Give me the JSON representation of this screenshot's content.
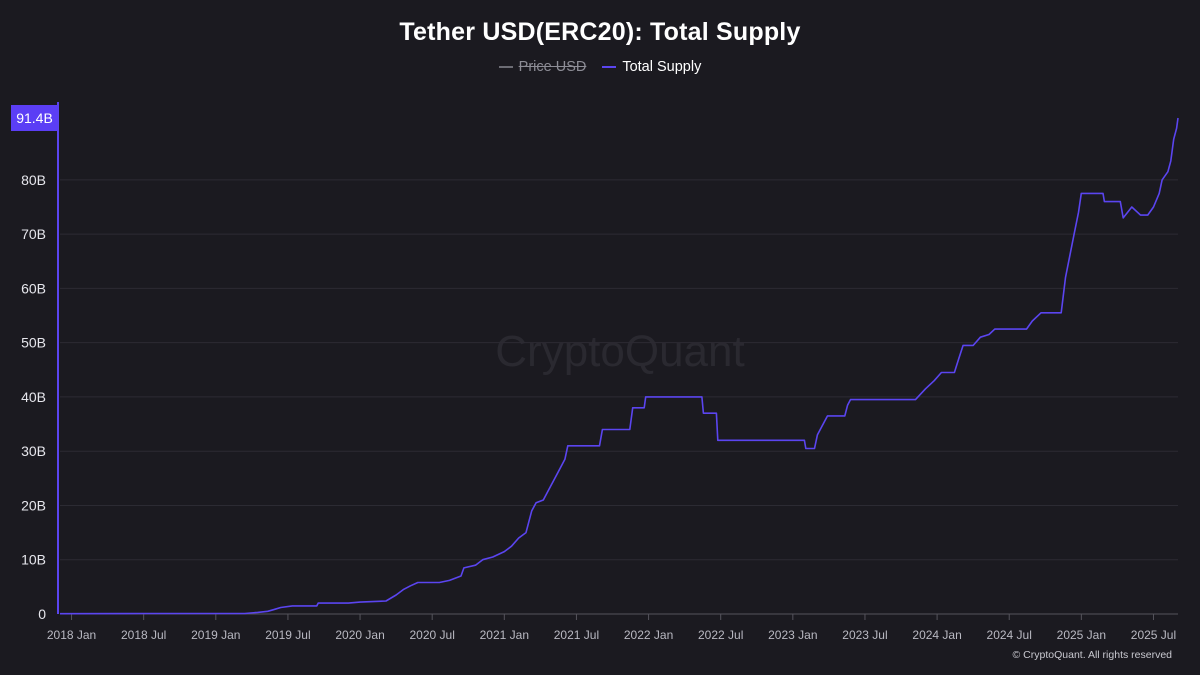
{
  "chart_data": {
    "type": "line",
    "title": "Tether USD(ERC20): Total Supply",
    "legend": [
      {
        "name": "Price USD",
        "visible": false,
        "color": "#6c6c74"
      },
      {
        "name": "Total Supply",
        "visible": true,
        "color": "#5b45f0"
      }
    ],
    "y_ticks": [
      {
        "value": 0,
        "label": "0"
      },
      {
        "value": 10,
        "label": "10B"
      },
      {
        "value": 20,
        "label": "20B"
      },
      {
        "value": 30,
        "label": "30B"
      },
      {
        "value": 40,
        "label": "40B"
      },
      {
        "value": 50,
        "label": "50B"
      },
      {
        "value": 60,
        "label": "60B"
      },
      {
        "value": 70,
        "label": "70B"
      },
      {
        "value": 80,
        "label": "80B"
      }
    ],
    "x_ticks": [
      {
        "t": 2018.0,
        "label": "2018 Jan"
      },
      {
        "t": 2018.5,
        "label": "2018 Jul"
      },
      {
        "t": 2019.0,
        "label": "2019 Jan"
      },
      {
        "t": 2019.5,
        "label": "2019 Jul"
      },
      {
        "t": 2020.0,
        "label": "2020 Jan"
      },
      {
        "t": 2020.5,
        "label": "2020 Jul"
      },
      {
        "t": 2021.0,
        "label": "2021 Jan"
      },
      {
        "t": 2021.5,
        "label": "2021 Jul"
      },
      {
        "t": 2022.0,
        "label": "2022 Jan"
      },
      {
        "t": 2022.5,
        "label": "2022 Jul"
      },
      {
        "t": 2023.0,
        "label": "2023 Jan"
      },
      {
        "t": 2023.5,
        "label": "2023 Jul"
      },
      {
        "t": 2024.0,
        "label": "2024 Jan"
      },
      {
        "t": 2024.5,
        "label": "2024 Jul"
      },
      {
        "t": 2025.0,
        "label": "2025 Jan"
      },
      {
        "t": 2025.5,
        "label": "2025 Jul"
      }
    ],
    "ylim": [
      0,
      91.4
    ],
    "xlim": [
      2017.92,
      2025.67
    ],
    "units": "B USD",
    "current_value": 91.4,
    "current_label": "91.4B",
    "series": [
      {
        "name": "Total Supply",
        "color": "#5b45f0",
        "points": [
          [
            2017.92,
            0.05
          ],
          [
            2018.5,
            0.1
          ],
          [
            2019.2,
            0.1
          ],
          [
            2019.29,
            0.3
          ],
          [
            2019.36,
            0.5
          ],
          [
            2019.4,
            0.8
          ],
          [
            2019.45,
            1.2
          ],
          [
            2019.53,
            1.5
          ],
          [
            2019.7,
            1.5
          ],
          [
            2019.71,
            2.0
          ],
          [
            2019.92,
            2.0
          ],
          [
            2020.0,
            2.2
          ],
          [
            2020.18,
            2.4
          ],
          [
            2020.25,
            3.5
          ],
          [
            2020.3,
            4.5
          ],
          [
            2020.35,
            5.2
          ],
          [
            2020.4,
            5.8
          ],
          [
            2020.55,
            5.8
          ],
          [
            2020.62,
            6.2
          ],
          [
            2020.7,
            7.0
          ],
          [
            2020.72,
            8.5
          ],
          [
            2020.8,
            9.0
          ],
          [
            2020.85,
            10.0
          ],
          [
            2020.92,
            10.5
          ],
          [
            2021.0,
            11.5
          ],
          [
            2021.05,
            12.5
          ],
          [
            2021.1,
            14.0
          ],
          [
            2021.15,
            15.0
          ],
          [
            2021.19,
            19.0
          ],
          [
            2021.22,
            20.5
          ],
          [
            2021.27,
            21.0
          ],
          [
            2021.3,
            22.5
          ],
          [
            2021.34,
            24.5
          ],
          [
            2021.38,
            26.5
          ],
          [
            2021.42,
            28.5
          ],
          [
            2021.44,
            31.0
          ],
          [
            2021.66,
            31.0
          ],
          [
            2021.68,
            34.0
          ],
          [
            2021.87,
            34.0
          ],
          [
            2021.89,
            38.0
          ],
          [
            2021.97,
            38.0
          ],
          [
            2021.98,
            40.0
          ],
          [
            2022.37,
            40.0
          ],
          [
            2022.38,
            37.0
          ],
          [
            2022.47,
            37.0
          ],
          [
            2022.48,
            32.0
          ],
          [
            2023.08,
            32.0
          ],
          [
            2023.09,
            30.5
          ],
          [
            2023.15,
            30.5
          ],
          [
            2023.17,
            33.0
          ],
          [
            2023.2,
            34.5
          ],
          [
            2023.24,
            36.5
          ],
          [
            2023.36,
            36.5
          ],
          [
            2023.38,
            38.5
          ],
          [
            2023.4,
            39.5
          ],
          [
            2023.85,
            39.5
          ],
          [
            2023.92,
            41.5
          ],
          [
            2023.98,
            43.0
          ],
          [
            2024.03,
            44.5
          ],
          [
            2024.12,
            44.5
          ],
          [
            2024.15,
            47.0
          ],
          [
            2024.18,
            49.5
          ],
          [
            2024.25,
            49.5
          ],
          [
            2024.3,
            51.0
          ],
          [
            2024.36,
            51.5
          ],
          [
            2024.4,
            52.5
          ],
          [
            2024.62,
            52.5
          ],
          [
            2024.66,
            54.0
          ],
          [
            2024.72,
            55.5
          ],
          [
            2024.86,
            55.5
          ],
          [
            2024.89,
            62.0
          ],
          [
            2024.92,
            66.0
          ],
          [
            2024.95,
            70.0
          ],
          [
            2024.98,
            74.0
          ],
          [
            2025.0,
            77.5
          ],
          [
            2025.15,
            77.5
          ],
          [
            2025.16,
            76.0
          ],
          [
            2025.27,
            76.0
          ],
          [
            2025.29,
            73.0
          ],
          [
            2025.35,
            75.0
          ],
          [
            2025.41,
            73.5
          ],
          [
            2025.46,
            73.5
          ],
          [
            2025.5,
            75.0
          ],
          [
            2025.54,
            77.5
          ],
          [
            2025.56,
            80.0
          ],
          [
            2025.6,
            81.5
          ],
          [
            2025.62,
            83.5
          ],
          [
            2025.64,
            87.5
          ],
          [
            2025.66,
            89.5
          ],
          [
            2025.67,
            91.4
          ]
        ]
      }
    ],
    "watermark": "CryptoQuant"
  },
  "footer": {
    "copyright": "© CryptoQuant. All rights reserved"
  }
}
